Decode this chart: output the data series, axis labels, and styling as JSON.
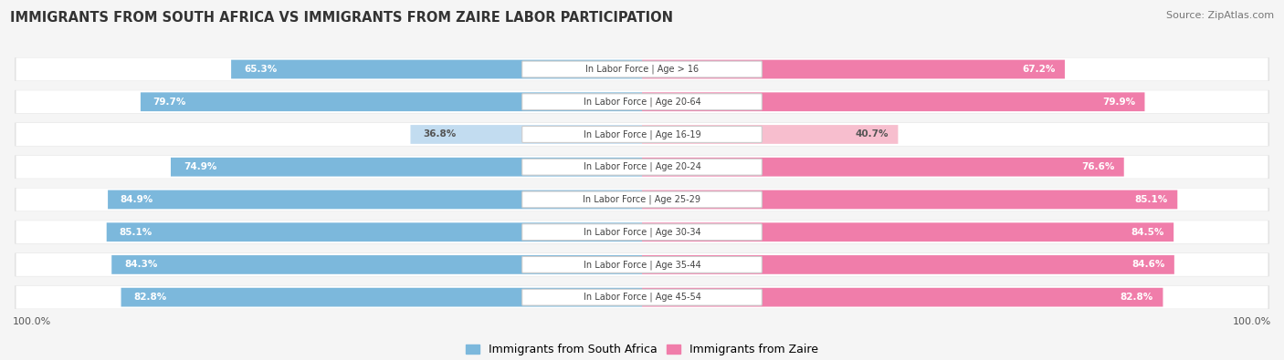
{
  "title": "IMMIGRANTS FROM SOUTH AFRICA VS IMMIGRANTS FROM ZAIRE LABOR PARTICIPATION",
  "source": "Source: ZipAtlas.com",
  "categories": [
    "In Labor Force | Age > 16",
    "In Labor Force | Age 20-64",
    "In Labor Force | Age 16-19",
    "In Labor Force | Age 20-24",
    "In Labor Force | Age 25-29",
    "In Labor Force | Age 30-34",
    "In Labor Force | Age 35-44",
    "In Labor Force | Age 45-54"
  ],
  "south_africa_values": [
    65.3,
    79.7,
    36.8,
    74.9,
    84.9,
    85.1,
    84.3,
    82.8
  ],
  "zaire_values": [
    67.2,
    79.9,
    40.7,
    76.6,
    85.1,
    84.5,
    84.6,
    82.8
  ],
  "south_africa_color": "#7CB8DC",
  "south_africa_color_light": "#C2DCF0",
  "zaire_color": "#F07DAA",
  "zaire_color_light": "#F7BECE",
  "row_bg": "#e8e8e8",
  "label_color_white": "#ffffff",
  "label_color_dark": "#555555",
  "legend_sa": "Immigrants from South Africa",
  "legend_zaire": "Immigrants from Zaire",
  "axis_label": "100.0%",
  "max_value": 100.0,
  "fig_bg": "#f5f5f5"
}
